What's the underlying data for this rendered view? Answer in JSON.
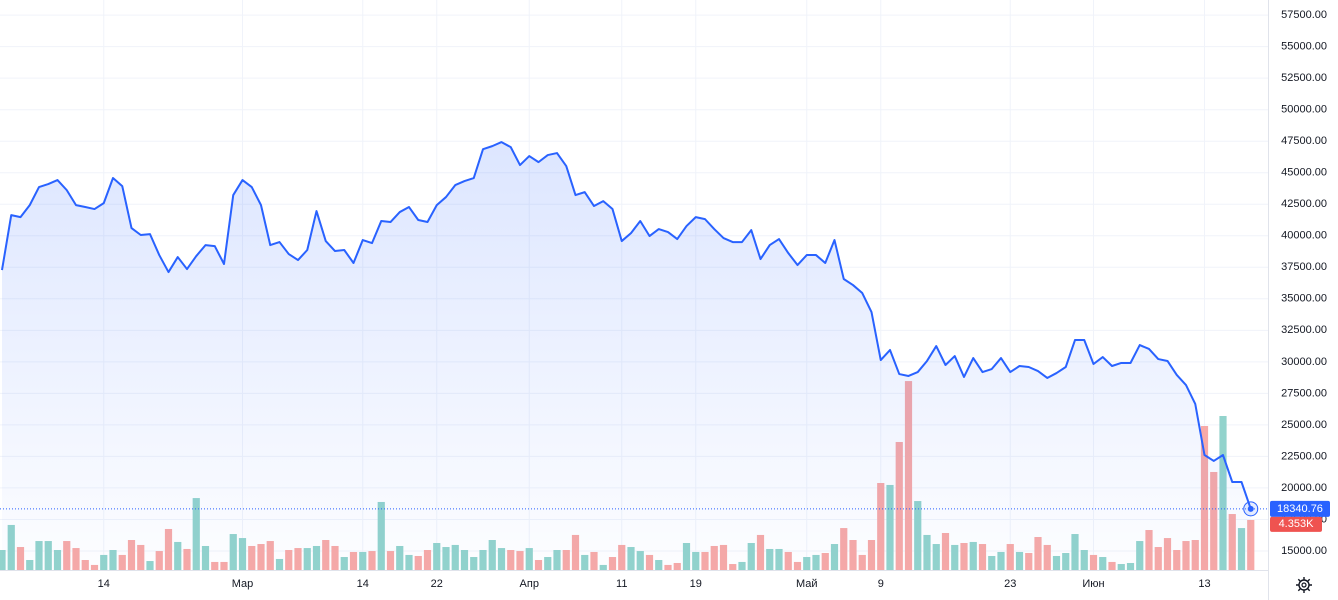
{
  "chart_data": {
    "type": "line",
    "categories": [
      null,
      null,
      null,
      null,
      null,
      null,
      null,
      null,
      null,
      null,
      null,
      "14",
      null,
      null,
      null,
      null,
      null,
      null,
      null,
      null,
      null,
      null,
      null,
      null,
      null,
      null,
      "Мар",
      null,
      null,
      null,
      null,
      null,
      null,
      null,
      null,
      null,
      null,
      null,
      null,
      "14",
      null,
      null,
      null,
      null,
      null,
      null,
      null,
      "22",
      null,
      null,
      null,
      null,
      null,
      null,
      null,
      null,
      null,
      "Апр",
      null,
      null,
      null,
      null,
      null,
      null,
      null,
      null,
      null,
      "11",
      null,
      null,
      null,
      null,
      null,
      null,
      null,
      "19",
      null,
      null,
      null,
      null,
      null,
      null,
      null,
      null,
      null,
      null,
      null,
      "Май",
      null,
      null,
      null,
      null,
      null,
      null,
      null,
      "9",
      null,
      null,
      null,
      null,
      null,
      null,
      null,
      null,
      null,
      null,
      null,
      null,
      null,
      "23",
      null,
      null,
      null,
      null,
      null,
      null,
      null,
      null,
      "Июн",
      null,
      null,
      null,
      null,
      null,
      null,
      null,
      null,
      null,
      null,
      null,
      "13",
      null,
      null,
      null,
      null,
      null
    ],
    "series": [
      {
        "color": "#2962ff",
        "values": [
          37280,
          41640,
          41480,
          42430,
          43860,
          44100,
          44420,
          43620,
          42430,
          42280,
          42120,
          42590,
          44580,
          43940,
          40610,
          40060,
          40130,
          38470,
          37120,
          38310,
          37360,
          38390,
          39260,
          39180,
          37760,
          43230,
          44420,
          43860,
          42430,
          39260,
          39500,
          38550,
          38070,
          38870,
          41960,
          39580,
          38790,
          38870,
          37840,
          39660,
          39420,
          41170,
          41090,
          41880,
          42280,
          41250,
          41090,
          42430,
          43070,
          44020,
          44340,
          44580,
          46870,
          47110,
          47430,
          47030,
          45610,
          46320,
          45840,
          46400,
          46560,
          45530,
          43230,
          43460,
          42360,
          42750,
          42120,
          39580,
          40210,
          41170,
          39980,
          40530,
          40290,
          39740,
          40770,
          41480,
          41320,
          40530,
          39820,
          39500,
          39500,
          40450,
          38150,
          39260,
          39740,
          38630,
          37680,
          38470,
          38470,
          37840,
          39660,
          36570,
          36090,
          35460,
          33950,
          30140,
          30940,
          29030,
          28880,
          29190,
          30070,
          31250,
          29750,
          30460,
          28800,
          30300,
          29190,
          29430,
          30300,
          29190,
          29670,
          29590,
          29270,
          28720,
          29110,
          29590,
          31730,
          31730,
          29830,
          30380,
          29670,
          29910,
          29910,
          31330,
          31020,
          30220,
          30070,
          28960,
          28160,
          26660,
          22610,
          22140,
          22610,
          20470,
          20470,
          18340.76
        ]
      }
    ],
    "ylim": [
      13490,
      58700
    ],
    "yticks": [
      {
        "value": 15000,
        "label": "15000.00"
      },
      {
        "value": 17500,
        "label": "17500.00"
      },
      {
        "value": 20000,
        "label": "20000.00"
      },
      {
        "value": 22500,
        "label": "22500.00"
      },
      {
        "value": 25000,
        "label": "25000.00"
      },
      {
        "value": 27500,
        "label": "27500.00"
      },
      {
        "value": 30000,
        "label": "30000.00"
      },
      {
        "value": 32500,
        "label": "32500.00"
      },
      {
        "value": 35000,
        "label": "35000.00"
      },
      {
        "value": 37500,
        "label": "37500.00"
      },
      {
        "value": 40000,
        "label": "40000.00"
      },
      {
        "value": 42500,
        "label": "42500.00"
      },
      {
        "value": 45000,
        "label": "45000.00"
      },
      {
        "value": 47500,
        "label": "47500.00"
      },
      {
        "value": 50000,
        "label": "50000.00"
      },
      {
        "value": 52500,
        "label": "52500.00"
      },
      {
        "value": 55000,
        "label": "55000.00"
      },
      {
        "value": 57500,
        "label": "57500.00"
      }
    ],
    "grid": true,
    "volume": {
      "up_color": "#92d3cc",
      "down_color": "#f7a9a7",
      "ylim": [
        0,
        49600
      ],
      "values": [
        1740,
        3920,
        2000,
        870,
        2520,
        2520,
        1740,
        2520,
        1910,
        870,
        440,
        1310,
        1740,
        1310,
        2610,
        2180,
        780,
        1650,
        3570,
        2440,
        1830,
        6260,
        2090,
        700,
        700,
        3130,
        2780,
        2090,
        2260,
        2520,
        960,
        1740,
        1910,
        1910,
        2090,
        2610,
        2090,
        1130,
        1570,
        1570,
        1650,
        5920,
        1650,
        2090,
        1310,
        1220,
        1740,
        2350,
        2000,
        2180,
        1740,
        1130,
        1740,
        2610,
        1910,
        1740,
        1650,
        1910,
        870,
        1130,
        1740,
        1740,
        3050,
        1310,
        1570,
        440,
        1130,
        2180,
        2000,
        1650,
        1310,
        870,
        440,
        610,
        2350,
        1570,
        1570,
        2090,
        2180,
        520,
        700,
        2350,
        3050,
        1830,
        1830,
        1570,
        700,
        1130,
        1310,
        1480,
        2260,
        3650,
        2610,
        1310,
        2610,
        7570,
        7400,
        11140,
        16440,
        6000,
        3050,
        2260,
        3220,
        2180,
        2350,
        2440,
        2260,
        1220,
        1570,
        2260,
        1570,
        1480,
        2870,
        2180,
        1220,
        1480,
        3130,
        1740,
        1310,
        1130,
        700,
        520,
        610,
        2520,
        3480,
        2000,
        2780,
        1740,
        2520,
        2610,
        12530,
        8530,
        13400,
        4870,
        3650,
        4353
      ],
      "value_labels": [
        null,
        null,
        null,
        null,
        null,
        null,
        null,
        null,
        null,
        null,
        null,
        null,
        null,
        null,
        null,
        null,
        null,
        null,
        null,
        null,
        null,
        null,
        null,
        null,
        null,
        null,
        null,
        null,
        null,
        null,
        null,
        null,
        null,
        null,
        null,
        null,
        null,
        null,
        null,
        null,
        null,
        null,
        null,
        null,
        null,
        null,
        null,
        null,
        null,
        null,
        null,
        null,
        null,
        null,
        null,
        null,
        null,
        null,
        null,
        null,
        null,
        null,
        null,
        null,
        null,
        null,
        null,
        null,
        null,
        null,
        null,
        null,
        null,
        null,
        null,
        null,
        null,
        null,
        null,
        null,
        null,
        null,
        null,
        null,
        null,
        null,
        null,
        null,
        null,
        null,
        null,
        null,
        null,
        null,
        null,
        null,
        null,
        null,
        null,
        null,
        null,
        null,
        null,
        null,
        null,
        null,
        null,
        null,
        null,
        null,
        null,
        null,
        null,
        null,
        null,
        null,
        null,
        null,
        null,
        null,
        null,
        null,
        null,
        null,
        null,
        null,
        null,
        null,
        null,
        null,
        null,
        null,
        null,
        null,
        null,
        "4.353K"
      ]
    }
  }
}
